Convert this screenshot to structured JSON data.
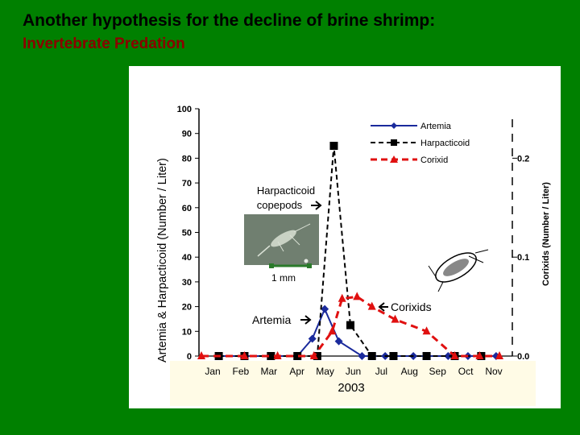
{
  "slide": {
    "title": "Another hypothesis for the decline of brine shrimp:",
    "subtitle": "Invertebrate Predation"
  },
  "colors": {
    "background": "#008000",
    "subtitle": "#8B0000",
    "artemia": "#1a2a9c",
    "harpacticoid": "#000000",
    "corixid": "#e01010"
  },
  "chart_data": {
    "type": "line",
    "xlabel": "2003",
    "ylabel": "Artemia & Harpacticoid (Number / Liter)",
    "y2label": "Corixids (Number / Liter)",
    "ylim": [
      0,
      100
    ],
    "y2lim": [
      0,
      0.25
    ],
    "yticks": [
      "0",
      "10",
      "20",
      "30",
      "40",
      "50",
      "60",
      "70",
      "80",
      "90",
      "100"
    ],
    "y2ticks": [
      "0.0",
      "0.1",
      "0.2"
    ],
    "months": [
      "Jan",
      "Feb",
      "Mar",
      "Apr",
      "May",
      "Jun",
      "Jul",
      "Aug",
      "Sep",
      "Oct",
      "Nov"
    ],
    "legend_position": "top-right",
    "series": [
      {
        "name": "Artemia",
        "axis": "left",
        "style": "solid",
        "marker": "diamond",
        "points": [
          [
            1.05,
            0
          ],
          [
            2.6,
            0
          ],
          [
            4.2,
            0
          ],
          [
            5.8,
            0
          ],
          [
            6.7,
            7
          ],
          [
            7.45,
            19
          ],
          [
            8.3,
            6
          ],
          [
            9.7,
            0
          ],
          [
            11.1,
            0
          ],
          [
            12.8,
            0
          ],
          [
            14.9,
            0
          ],
          [
            16.1,
            0
          ],
          [
            17.8,
            0
          ]
        ]
      },
      {
        "name": "Harpacticoid",
        "axis": "left",
        "style": "dashed",
        "marker": "square",
        "points": [
          [
            1.05,
            0
          ],
          [
            2.6,
            0
          ],
          [
            4.2,
            0
          ],
          [
            5.8,
            0
          ],
          [
            7.0,
            0
          ],
          [
            8.0,
            85
          ],
          [
            9.0,
            12.5
          ],
          [
            10.3,
            0
          ],
          [
            11.6,
            0
          ],
          [
            13.6,
            0
          ],
          [
            15.3,
            0
          ],
          [
            16.9,
            0
          ]
        ]
      },
      {
        "name": "Corixid",
        "axis": "right",
        "style": "dashed",
        "marker": "triangle",
        "points": [
          [
            0.0,
            0.0
          ],
          [
            2.6,
            0.0
          ],
          [
            4.6,
            0.0
          ],
          [
            6.8,
            0.0
          ],
          [
            7.9,
            0.025
          ],
          [
            8.5,
            0.058
          ],
          [
            9.4,
            0.06
          ],
          [
            10.3,
            0.05
          ],
          [
            11.7,
            0.037
          ],
          [
            13.6,
            0.025
          ],
          [
            15.3,
            0.0
          ],
          [
            16.8,
            0.0
          ],
          [
            18.0,
            0.0
          ]
        ]
      }
    ],
    "annotations": {
      "harpacticoid": "Harpacticoid copepods",
      "scale": "1 mm",
      "corixids": "Corixids",
      "artemia": "Artemia"
    }
  }
}
